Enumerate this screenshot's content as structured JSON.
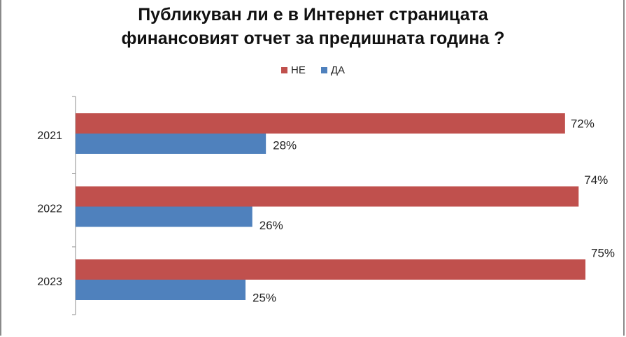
{
  "title_line1": "Публикуван ли е в Интернет страницата",
  "title_line2": "финансовият отчет за предишната година ?",
  "chart_data": {
    "type": "bar",
    "orientation": "horizontal",
    "categories": [
      "2021",
      "2022",
      "2023"
    ],
    "series": [
      {
        "name": "НЕ",
        "values": [
          72,
          74,
          75
        ],
        "labels": [
          "72%",
          "74%",
          "75%"
        ],
        "color": "#c0504d"
      },
      {
        "name": "ДА",
        "values": [
          28,
          26,
          25
        ],
        "labels": [
          "28%",
          "26%",
          "25%"
        ],
        "color": "#4f81bd"
      }
    ],
    "legend_position": "top",
    "xlim": [
      0,
      80
    ],
    "grid": false
  }
}
